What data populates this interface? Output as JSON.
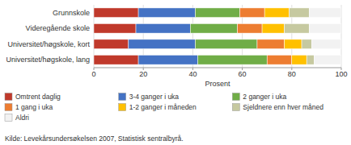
{
  "chart_data": {
    "type": "bar",
    "orientation": "horizontal",
    "stacked": true,
    "categories": [
      "Grunnskole",
      "Videregående skole",
      "Universitet/høgskole, kort",
      "Universitet/høgskole, lang"
    ],
    "series": [
      {
        "name": "Omtrent daglig",
        "color": "#c0392b",
        "values": [
          18,
          17,
          14,
          18
        ]
      },
      {
        "name": "3-4 ganger i uka",
        "color": "#4472c4",
        "values": [
          23,
          22,
          27,
          24
        ]
      },
      {
        "name": "2 ganger i uka",
        "color": "#70ad47",
        "values": [
          18,
          19,
          25,
          28
        ]
      },
      {
        "name": "1 gang i uka",
        "color": "#ed7d31",
        "values": [
          10,
          10,
          11,
          10
        ]
      },
      {
        "name": "1-2 ganger i måneden",
        "color": "#ffc000",
        "values": [
          10,
          9,
          7,
          6
        ]
      },
      {
        "name": "Sjeldnere enn hver måned",
        "color": "#c6c9a0",
        "values": [
          8,
          10,
          4,
          3
        ]
      },
      {
        "name": "Aldri",
        "color": "#f2f2f2",
        "values": [
          13,
          13,
          12,
          11
        ]
      }
    ],
    "xlabel": "Prosent",
    "xlim": [
      0,
      100
    ],
    "xticks": [
      0,
      20,
      40,
      60,
      80,
      100
    ],
    "grid": true,
    "legend": "bottom",
    "annotations": [
      "Kilde: Levekårsundersøkelsen 2007, Statistisk sentralbyrå."
    ]
  }
}
